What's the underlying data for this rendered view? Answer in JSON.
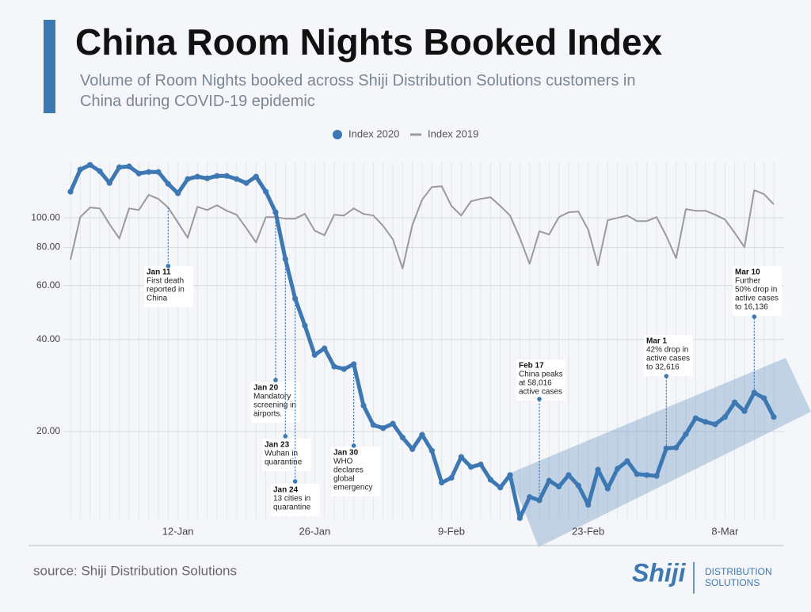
{
  "chart_data": {
    "type": "line",
    "title": "China Room Nights Booked Index",
    "subtitle": "Volume of Room Nights booked across Shiji Distribution Solutions customers in China during COVID-19 epidemic",
    "source": "source: Shiji Distribution Solutions",
    "logo": {
      "name": "Shiji",
      "line1": "DISTRIBUTION",
      "line2": "SOLUTIONS"
    },
    "log_scale": true,
    "grid": true,
    "legend": "top",
    "categories": [
      null,
      null,
      null,
      null,
      null,
      null,
      null,
      null,
      null,
      null,
      null,
      "12-Jan",
      null,
      null,
      null,
      null,
      null,
      null,
      null,
      null,
      null,
      null,
      null,
      null,
      null,
      "26-Jan",
      null,
      null,
      null,
      null,
      null,
      null,
      null,
      null,
      null,
      null,
      null,
      null,
      null,
      "9-Feb",
      null,
      null,
      null,
      null,
      null,
      null,
      null,
      null,
      null,
      null,
      null,
      null,
      null,
      "23-Feb",
      null,
      null,
      null,
      null,
      null,
      null,
      null,
      null,
      null,
      null,
      null,
      null,
      null,
      "8-Mar",
      null,
      null,
      null,
      null,
      null
    ],
    "ylim": [
      10.37,
      152
    ],
    "yticks": [
      {
        "value": 20,
        "label": "20.00"
      },
      {
        "value": 40,
        "label": "40.00"
      },
      {
        "value": 60,
        "label": "60.00"
      },
      {
        "value": 80,
        "label": "80.00"
      },
      {
        "value": 100,
        "label": "100.00"
      }
    ],
    "series": [
      {
        "name": "Index 2020",
        "color": "#3d78b3",
        "values": [
          121.8,
          143.9,
          149.1,
          142.2,
          130.0,
          146.5,
          147.4,
          139.7,
          141.3,
          141.3,
          129.2,
          120.3,
          134.0,
          136.4,
          134.7,
          137.2,
          137.2,
          134.0,
          130.0,
          136.4,
          121.8,
          104.3,
          73.3,
          54.4,
          44.4,
          35.6,
          37.4,
          32.6,
          32.0,
          33.2,
          24.3,
          21.0,
          20.5,
          21.2,
          19.1,
          17.5,
          19.5,
          17.3,
          13.6,
          14.1,
          16.5,
          15.3,
          15.6,
          13.9,
          13.1,
          14.4,
          10.4,
          12.2,
          11.9,
          13.8,
          13.2,
          14.4,
          13.3,
          11.5,
          15.0,
          13.0,
          15.1,
          16.0,
          14.5,
          14.4,
          14.3,
          17.6,
          17.7,
          19.6,
          22.1,
          21.5,
          21.1,
          22.3,
          24.9,
          23.3,
          26.8,
          25.7,
          22.3
        ]
      },
      {
        "name": "Index 2019",
        "color": "#9a9a9a",
        "values": [
          72.9,
          100.6,
          108.1,
          107.4,
          95.3,
          85.6,
          107.4,
          106.1,
          118.9,
          115.4,
          108.1,
          96.5,
          86.1,
          108.7,
          106.1,
          110.0,
          105.5,
          102.4,
          92.5,
          83.1,
          100.6,
          100.6,
          99.4,
          99.4,
          103.0,
          90.9,
          87.7,
          102.4,
          101.8,
          107.4,
          103.0,
          101.8,
          94.2,
          85.1,
          68.3,
          94.8,
          114.7,
          126.2,
          126.9,
          109.4,
          101.8,
          113.3,
          115.4,
          116.8,
          109.4,
          101.8,
          86.1,
          70.7,
          90.4,
          88.2,
          100.6,
          104.3,
          104.9,
          91.4,
          69.9,
          98.2,
          100.0,
          101.8,
          97.6,
          97.6,
          100.6,
          87.2,
          73.8,
          106.8,
          105.5,
          105.5,
          102.4,
          98.8,
          89.3,
          80.2,
          123.2,
          119.6,
          110.7
        ]
      }
    ],
    "annotations": [
      {
        "date": "Jan 11",
        "lines": [
          "First death",
          "reported in",
          "China"
        ]
      },
      {
        "date": "Jan 20",
        "lines": [
          "Mandatory",
          "screening in",
          "airports."
        ]
      },
      {
        "date": "Jan 23",
        "lines": [
          "Wuhan in",
          "quarantine"
        ]
      },
      {
        "date": "Jan 24",
        "lines": [
          "13 cities in",
          "quarantine"
        ]
      },
      {
        "date": "Jan 30",
        "lines": [
          "WHO",
          "declares",
          "global",
          "emergency"
        ]
      },
      {
        "date": "Feb 17",
        "lines": [
          "China peaks",
          "at 58,016",
          "active cases"
        ]
      },
      {
        "date": "Mar 1",
        "lines": [
          "42% drop in",
          "active cases",
          "to 32,616"
        ]
      },
      {
        "date": "Mar 10",
        "lines": [
          "Further",
          "50% drop in",
          "active cases",
          "to 16,136"
        ]
      }
    ]
  }
}
